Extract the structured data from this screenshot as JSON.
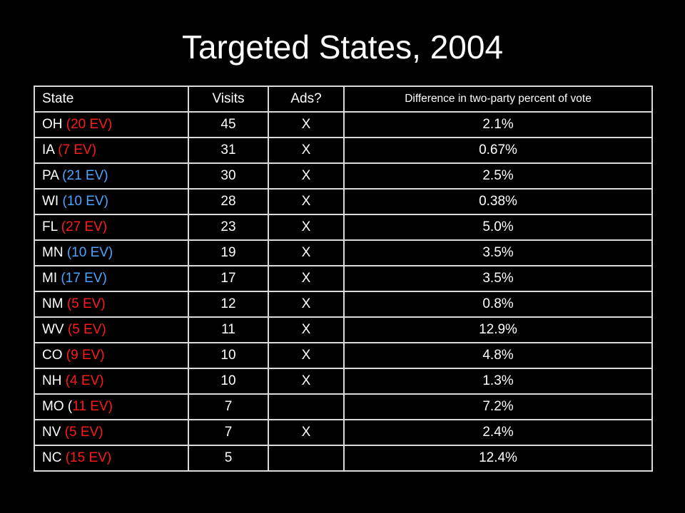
{
  "title": "Targeted States, 2004",
  "columns": {
    "state": "State",
    "visits": "Visits",
    "ads": "Ads?",
    "diff": "Difference in two-party percent of vote"
  },
  "colors": {
    "red": "#ff1a1a",
    "blue": "#4da3ff",
    "border": "#d9d9d9",
    "background": "#000000"
  },
  "rows": [
    {
      "state": "OH",
      "pre": " ",
      "ev": "(20 EV)",
      "post": "",
      "ev_color": "red",
      "visits": "45",
      "ads": "X",
      "diff": "2.1%"
    },
    {
      "state": "IA",
      "pre": " ",
      "ev": "(7 EV)",
      "post": "",
      "ev_color": "red",
      "visits": "31",
      "ads": "X",
      "diff": "0.67%"
    },
    {
      "state": "PA",
      "pre": " ",
      "ev": "(21 EV)",
      "post": "",
      "ev_color": "blue",
      "visits": "30",
      "ads": "X",
      "diff": "2.5%"
    },
    {
      "state": "WI",
      "pre": " ",
      "ev": "(10 EV)",
      "post": "",
      "ev_color": "blue",
      "visits": "28",
      "ads": "X",
      "diff": "0.38%"
    },
    {
      "state": "FL",
      "pre": " ",
      "ev": "(27 EV)",
      "post": "",
      "ev_color": "red",
      "visits": "23",
      "ads": "X",
      "diff": "5.0%"
    },
    {
      "state": "MN",
      "pre": " ",
      "ev": "(10 EV)",
      "post": "",
      "ev_color": "blue",
      "visits": "19",
      "ads": "X",
      "diff": "3.5%"
    },
    {
      "state": "MI",
      "pre": " ",
      "ev": "(17 EV)",
      "post": "",
      "ev_color": "blue",
      "visits": "17",
      "ads": "X",
      "diff": "3.5%"
    },
    {
      "state": "NM",
      "pre": " ",
      "ev": "(5 EV)",
      "post": "",
      "ev_color": "red",
      "visits": "12",
      "ads": "X",
      "diff": "0.8%"
    },
    {
      "state": "WV",
      "pre": " ",
      "ev": "(5 EV)",
      "post": "",
      "ev_color": "red",
      "visits": "11",
      "ads": "X",
      "diff": "12.9%"
    },
    {
      "state": "CO",
      "pre": " ",
      "ev": "(9 EV)",
      "post": "",
      "ev_color": "red",
      "visits": "10",
      "ads": "X",
      "diff": "4.8%"
    },
    {
      "state": "NH",
      "pre": " ",
      "ev": "(4 EV)",
      "post": "",
      "ev_color": "red",
      "visits": "10",
      "ads": "X",
      "diff": "1.3%"
    },
    {
      "state": "MO",
      "pre": " (",
      "ev": "11 EV)",
      "post": "",
      "ev_color": "red",
      "visits": "7",
      "ads": "",
      "diff": "7.2%"
    },
    {
      "state": "NV",
      "pre": " ",
      "ev": "(5 EV)",
      "post": "",
      "ev_color": "red",
      "visits": "7",
      "ads": "X",
      "diff": "2.4%"
    },
    {
      "state": "NC",
      "pre": " ",
      "ev": "(15 EV)",
      "post": "",
      "ev_color": "red",
      "visits": "5",
      "ads": "",
      "diff": "12.4%"
    }
  ]
}
